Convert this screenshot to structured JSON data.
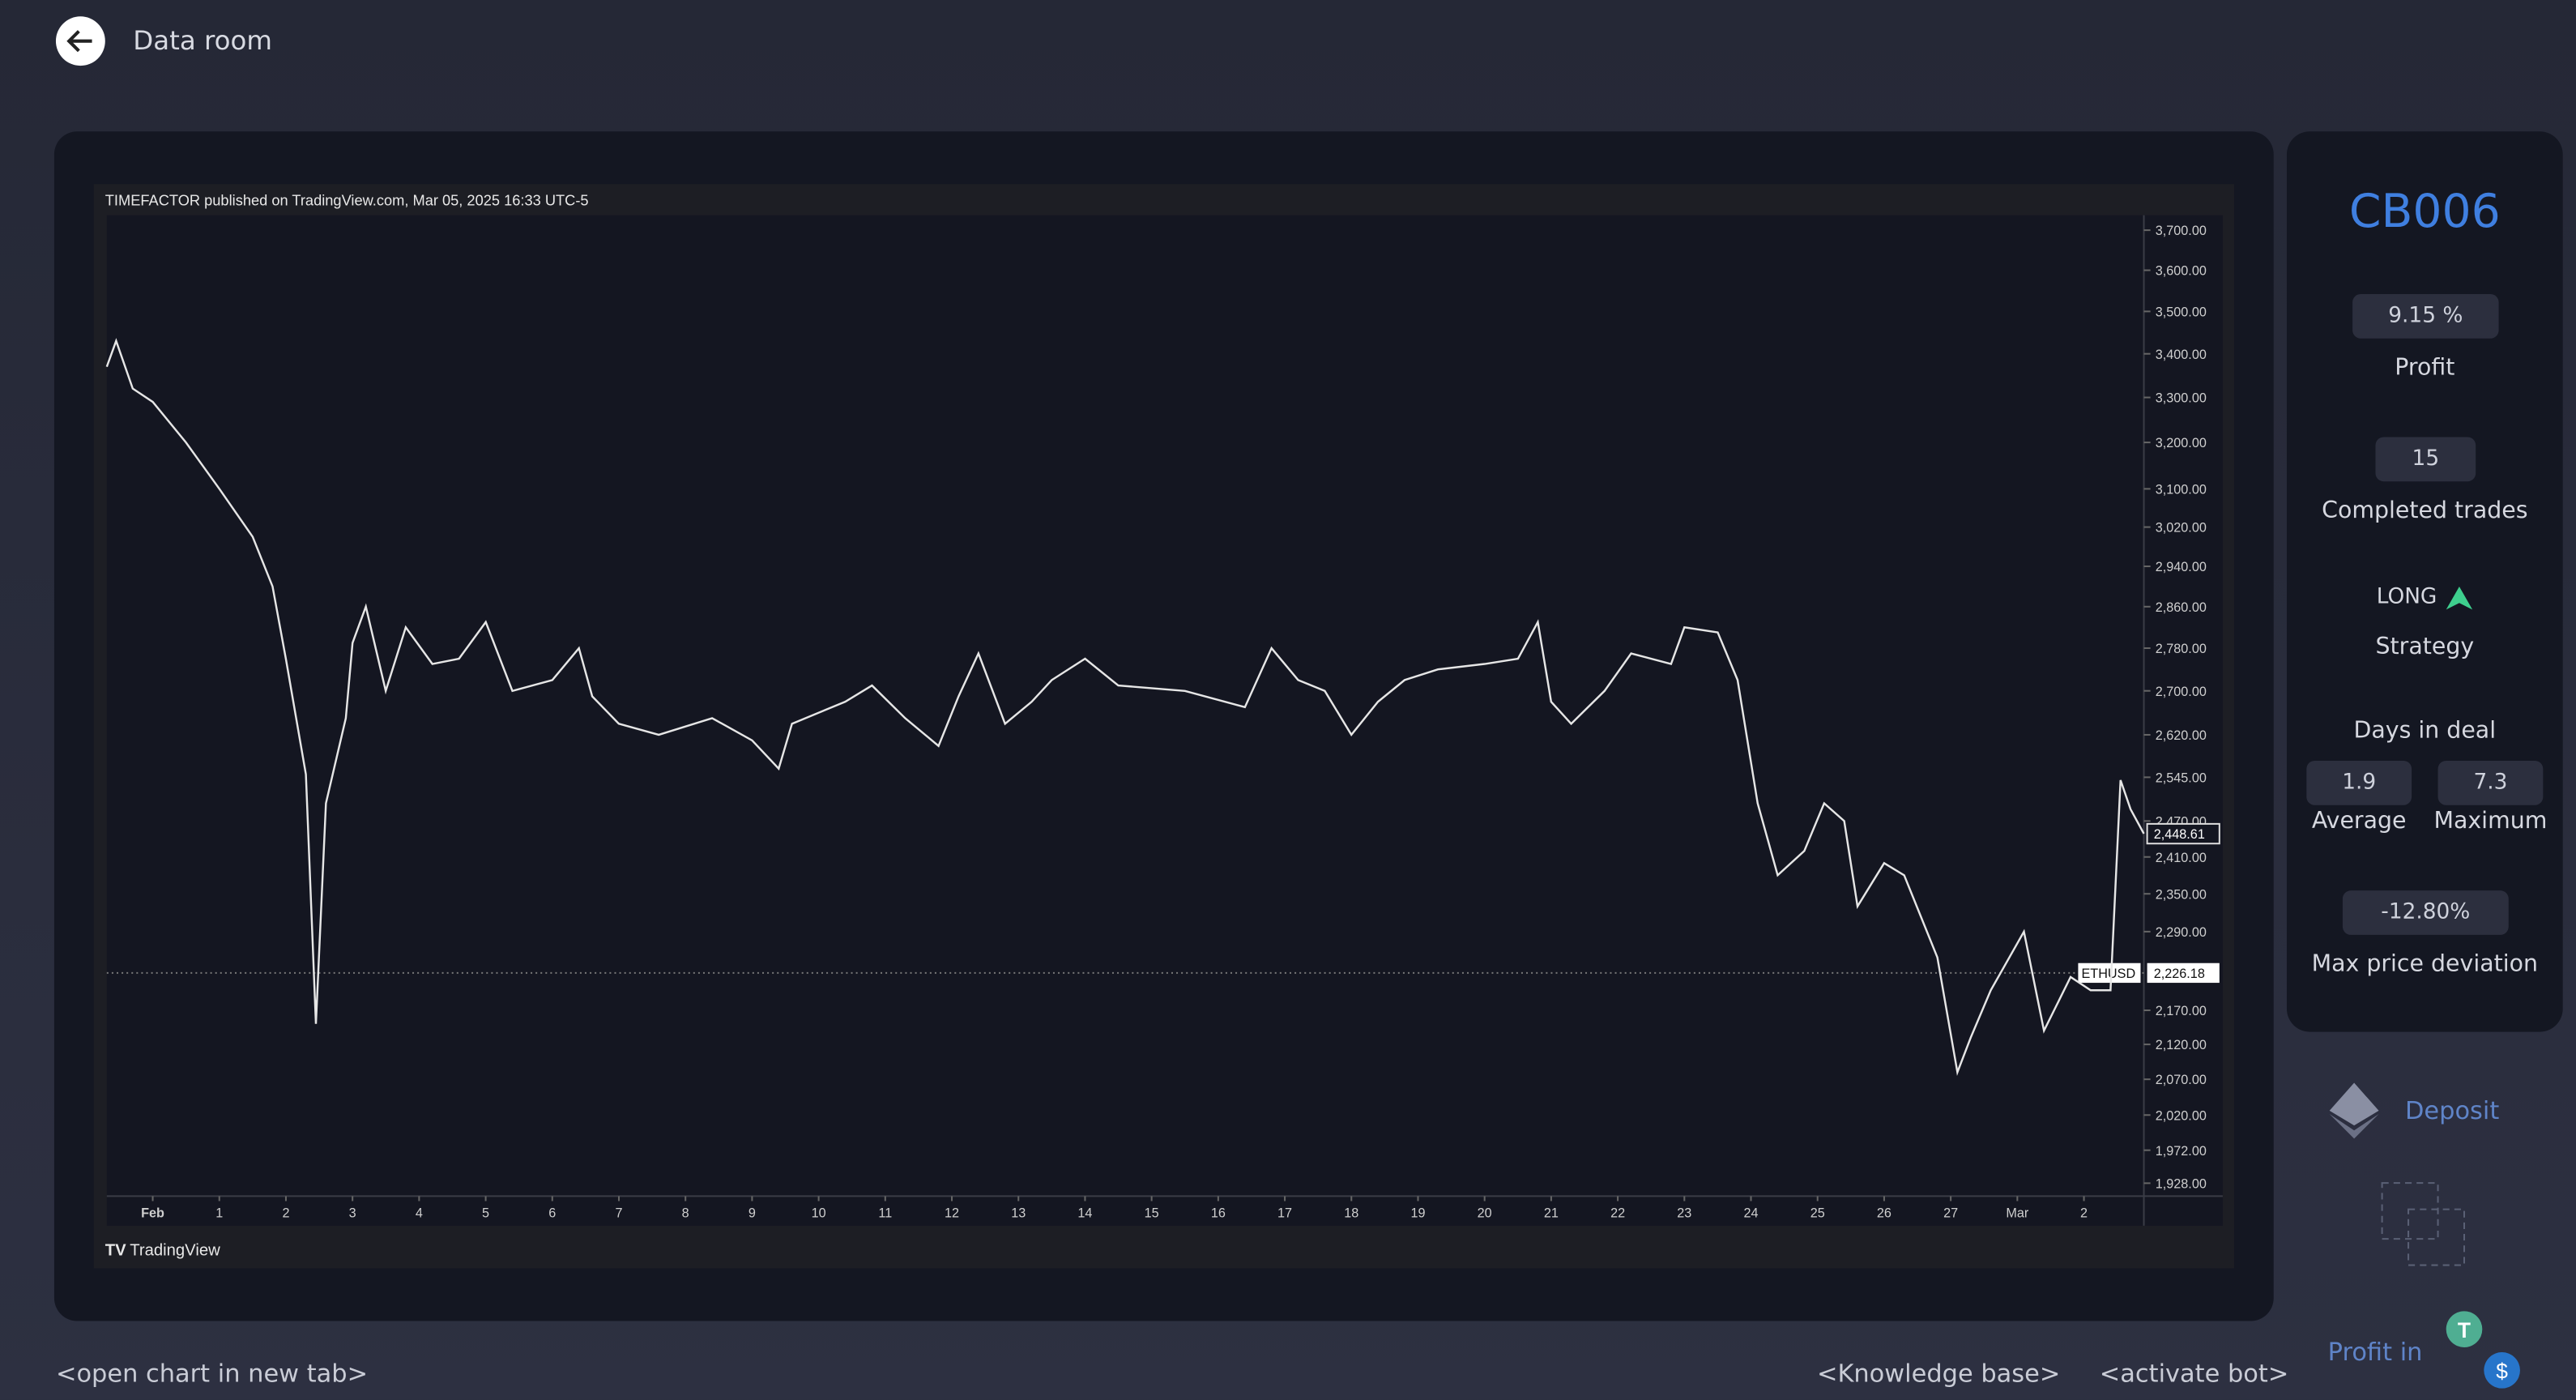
{
  "header": {
    "title": "Data room"
  },
  "chart_data": {
    "type": "line",
    "attribution": "TIMEFACTOR published on TradingView.com, Mar 05, 2025 16:33 UTC-5",
    "brand": "TradingView",
    "symbol": "ETHUSD",
    "log_scale": true,
    "color": "#e6e6e6",
    "x": [
      -0.69,
      -0.55,
      -0.3,
      0,
      0.5,
      1,
      1.5,
      1.8,
      2.0,
      2.3,
      2.45,
      2.6,
      2.9,
      3.0,
      3.2,
      3.5,
      3.8,
      4.2,
      4.6,
      5.0,
      5.4,
      6.0,
      6.4,
      6.6,
      7.0,
      7.6,
      8.4,
      9.0,
      9.4,
      9.6,
      10.4,
      10.8,
      11.3,
      11.8,
      12.1,
      12.4,
      12.8,
      13.2,
      13.5,
      14.0,
      14.5,
      15.5,
      16.4,
      16.8,
      17.2,
      17.6,
      18.0,
      18.4,
      18.8,
      19.3,
      20.0,
      20.5,
      20.8,
      21.0,
      21.3,
      21.8,
      22.2,
      22.8,
      23.0,
      23.5,
      23.8,
      24.1,
      24.4,
      24.8,
      25.1,
      25.4,
      25.6,
      26.0,
      26.3,
      26.8,
      27.1,
      27.3,
      27.6,
      28.1,
      28.4,
      28.8,
      29.1,
      29.4,
      29.55,
      29.7,
      29.9
    ],
    "values": [
      3370,
      3430,
      3320,
      3290,
      3200,
      3100,
      3000,
      2900,
      2760,
      2550,
      2150,
      2500,
      2650,
      2790,
      2860,
      2700,
      2820,
      2750,
      2760,
      2830,
      2700,
      2720,
      2780,
      2690,
      2640,
      2620,
      2650,
      2610,
      2560,
      2640,
      2680,
      2710,
      2650,
      2600,
      2690,
      2770,
      2640,
      2680,
      2720,
      2760,
      2710,
      2700,
      2670,
      2780,
      2720,
      2700,
      2620,
      2680,
      2720,
      2740,
      2750,
      2760,
      2830,
      2680,
      2640,
      2700,
      2770,
      2750,
      2820,
      2810,
      2720,
      2500,
      2380,
      2420,
      2500,
      2470,
      2330,
      2400,
      2380,
      2250,
      2080,
      2130,
      2200,
      2290,
      2140,
      2220,
      2200,
      2200,
      2540,
      2490,
      2448.61
    ],
    "xlim": [
      -0.69,
      29.9
    ],
    "ylim": [
      1911,
      3738
    ],
    "xticks": [
      {
        "value": 0,
        "label": "Feb"
      },
      1,
      2,
      3,
      4,
      5,
      6,
      7,
      8,
      9,
      10,
      11,
      12,
      13,
      14,
      15,
      16,
      17,
      18,
      19,
      20,
      21,
      22,
      23,
      24,
      25,
      26,
      27,
      {
        "value": 28,
        "label": "Mar"
      },
      {
        "value": 29,
        "label": "2"
      }
    ],
    "xtick_labels_note_free": true,
    "yticks": [
      {
        "value": 3700,
        "label": "3,700.00"
      },
      {
        "value": 3600,
        "label": "3,600.00"
      },
      {
        "value": 3500,
        "label": "3,500.00"
      },
      {
        "value": 3400,
        "label": "3,400.00"
      },
      {
        "value": 3300,
        "label": "3,300.00"
      },
      {
        "value": 3200,
        "label": "3,200.00"
      },
      {
        "value": 3100,
        "label": "3,100.00"
      },
      {
        "value": 3020,
        "label": "3,020.00"
      },
      {
        "value": 2940,
        "label": "2,940.00"
      },
      {
        "value": 2860,
        "label": "2,860.00"
      },
      {
        "value": 2780,
        "label": "2,780.00"
      },
      {
        "value": 2700,
        "label": "2,700.00"
      },
      {
        "value": 2620,
        "label": "2,620.00"
      },
      {
        "value": 2545,
        "label": "2,545.00"
      },
      {
        "value": 2470,
        "label": "2,470.00"
      },
      {
        "value": 2410,
        "label": "2,410.00"
      },
      {
        "value": 2350,
        "label": "2,350.00"
      },
      {
        "value": 2290,
        "label": "2,290.00"
      },
      {
        "value": 2170,
        "label": "2,170.00"
      },
      {
        "value": 2120,
        "label": "2,120.00"
      },
      {
        "value": 2070,
        "label": "2,070.00"
      },
      {
        "value": 2020,
        "label": "2,020.00"
      },
      {
        "value": 1972,
        "label": "1,972.00"
      },
      {
        "value": 1928,
        "label": "1,928.00"
      }
    ],
    "last_price": {
      "value": 2448.61,
      "label": "2,448.61"
    },
    "reference_line": {
      "value": 2226.18,
      "label": "2,226.18"
    }
  },
  "panel": {
    "code": "CB006",
    "profit": "9.15 %",
    "profit_label": "Profit",
    "trades": "15",
    "trades_label": "Completed trades",
    "strategy": "LONG",
    "strategy_label": "Strategy",
    "days_title": "Days in deal",
    "average": "1.9",
    "average_label": "Average",
    "maximum": "7.3",
    "maximum_label": "Maximum",
    "deviation": "-12.80%",
    "deviation_label": "Max price deviation",
    "deposit": "Deposit",
    "profit_in": "Profit in"
  },
  "footer": {
    "open_chart": "<open chart in new tab>",
    "knowledge": "<Knowledge base>",
    "activate": "<activate bot>"
  }
}
